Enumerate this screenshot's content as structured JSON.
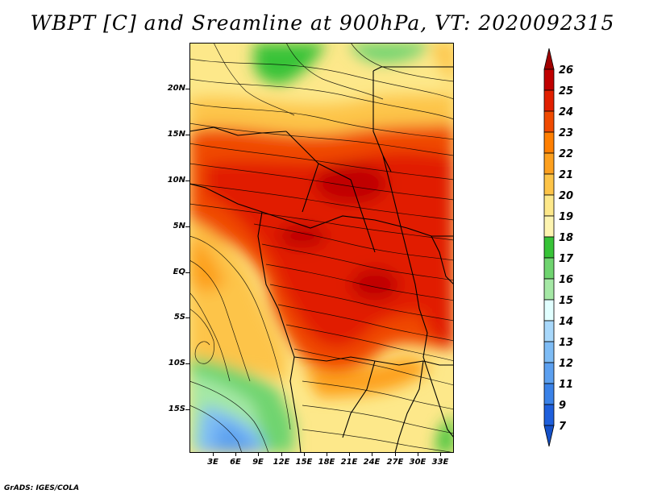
{
  "title": "WBPT [C] and Sreamline at 900hPa, VT: 2020092315",
  "credit": "GrADS: IGES/COLA",
  "map": {
    "y_labels": [
      "20N",
      "15N",
      "10N",
      "5N",
      "EQ",
      "5S",
      "10S",
      "15S"
    ],
    "x_labels": [
      "3E",
      "6E",
      "9E",
      "12E",
      "15E",
      "18E",
      "21E",
      "24E",
      "27E",
      "30E",
      "33E"
    ],
    "lon_range": [
      0,
      35
    ],
    "lat_range": [
      -20,
      25
    ]
  },
  "colorbar": {
    "labels": [
      "26",
      "25",
      "24",
      "23",
      "22",
      "21",
      "20",
      "19",
      "18",
      "17",
      "16",
      "15",
      "14",
      "13",
      "12",
      "11",
      "9",
      "7"
    ],
    "colors": [
      "#a00000",
      "#c00000",
      "#e11f00",
      "#f04a00",
      "#ff7f00",
      "#fda01e",
      "#fdc448",
      "#fde88a",
      "#fdf4b0",
      "#37c337",
      "#6fd46f",
      "#a5e8a5",
      "#e1ffff",
      "#a8d8fb",
      "#7ebcf5",
      "#5ca0f0",
      "#3a82e8",
      "#1e5fdc",
      "#1450c8"
    ]
  }
}
